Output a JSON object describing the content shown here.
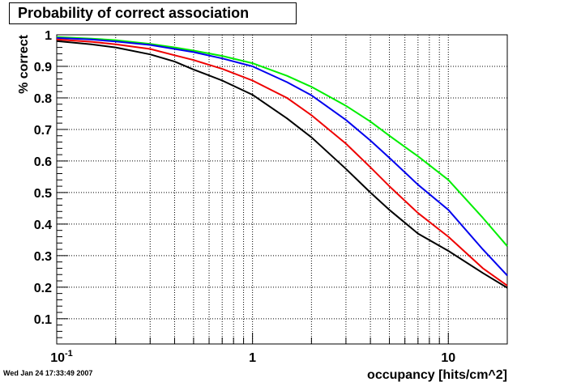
{
  "title": "Probability of correct association",
  "timestamp": "Wed Jan 24 17:33:49 2007",
  "chart_data": {
    "type": "line",
    "title": "Probability of correct association",
    "xlabel": "occupancy [hits/cm^2]",
    "ylabel": "% correct",
    "xscale": "log",
    "xlim": [
      0.1,
      20
    ],
    "ylim": [
      0.02,
      1.0
    ],
    "grid": true,
    "x_tick_labels": [
      {
        "value": 0.1,
        "base": "10",
        "exp": "-1"
      },
      {
        "value": 1,
        "base": "1",
        "exp": ""
      },
      {
        "value": 10,
        "base": "10",
        "exp": ""
      }
    ],
    "y_tick_labels": [
      "0.1",
      "0.2",
      "0.3",
      "0.4",
      "0.5",
      "0.6",
      "0.7",
      "0.8",
      "0.9",
      "1"
    ],
    "x_points": [
      0.1,
      0.15,
      0.2,
      0.3,
      0.4,
      0.5,
      0.7,
      1,
      1.5,
      2,
      3,
      4,
      5,
      7,
      10,
      15,
      20
    ],
    "series": [
      {
        "color": "#00ee00",
        "values": [
          0.993,
          0.988,
          0.983,
          0.971,
          0.96,
          0.95,
          0.933,
          0.91,
          0.87,
          0.835,
          0.775,
          0.725,
          0.68,
          0.615,
          0.54,
          0.42,
          0.33
        ]
      },
      {
        "color": "#0000ee",
        "values": [
          0.99,
          0.985,
          0.979,
          0.968,
          0.955,
          0.945,
          0.925,
          0.9,
          0.85,
          0.808,
          0.73,
          0.665,
          0.61,
          0.525,
          0.445,
          0.32,
          0.237
        ]
      },
      {
        "color": "#ee0000",
        "values": [
          0.985,
          0.978,
          0.97,
          0.955,
          0.935,
          0.92,
          0.892,
          0.855,
          0.8,
          0.745,
          0.655,
          0.58,
          0.52,
          0.435,
          0.36,
          0.26,
          0.205
        ]
      },
      {
        "color": "#000000",
        "values": [
          0.98,
          0.97,
          0.96,
          0.938,
          0.915,
          0.89,
          0.855,
          0.81,
          0.735,
          0.675,
          0.575,
          0.5,
          0.445,
          0.37,
          0.315,
          0.245,
          0.198
        ]
      }
    ]
  }
}
